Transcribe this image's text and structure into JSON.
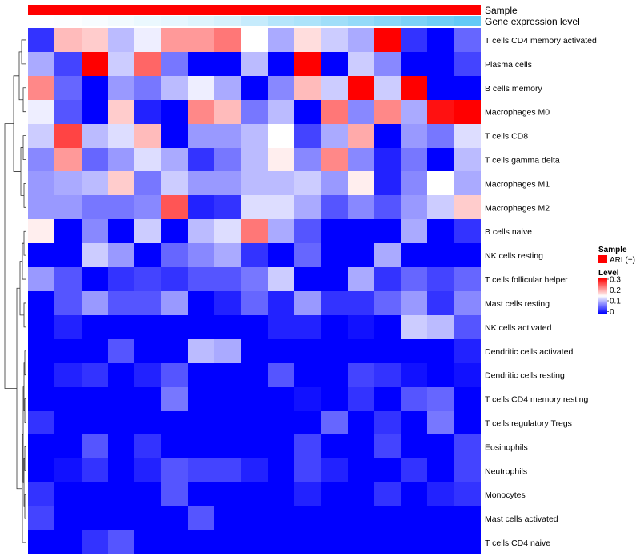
{
  "chart_data": {
    "type": "heatmap",
    "rows": [
      "T cells CD4 memory activated",
      "Plasma cells",
      "B cells memory",
      "Macrophages M0",
      "T cells CD8",
      "T cells gamma delta",
      "Macrophages M1",
      "Macrophages M2",
      "B cells naive",
      "NK cells resting",
      "T cells follicular helper",
      "Mast cells resting",
      "NK cells activated",
      "Dendritic cells activated",
      "Dendritic cells resting",
      "T cells CD4 memory resting",
      "T cells regulatory  Tregs",
      "Eosinophils",
      "Neutrophils",
      "Monocytes",
      "Mast cells activated",
      "T cells CD4 naive"
    ],
    "n_columns": 17,
    "values": [
      [
        0.03,
        0.19,
        0.18,
        0.11,
        0.14,
        0.21,
        0.21,
        0.23,
        0.15,
        0.1,
        0.17,
        0.12,
        0.1,
        0.3,
        0.03,
        0.0,
        0.06
      ],
      [
        0.1,
        0.04,
        0.3,
        0.12,
        0.24,
        0.07,
        0.0,
        0.0,
        0.11,
        0.0,
        0.3,
        0.0,
        0.12,
        0.08,
        0.0,
        0.0,
        0.04
      ],
      [
        0.22,
        0.06,
        0.0,
        0.09,
        0.07,
        0.11,
        0.14,
        0.1,
        0.0,
        0.08,
        0.19,
        0.12,
        0.3,
        0.12,
        0.3,
        0.0,
        0.0
      ],
      [
        0.14,
        0.05,
        0.0,
        0.18,
        0.02,
        0.0,
        0.22,
        0.19,
        0.07,
        0.11,
        0.0,
        0.23,
        0.08,
        0.22,
        0.1,
        0.29,
        0.3
      ],
      [
        0.12,
        0.26,
        0.11,
        0.13,
        0.19,
        0.0,
        0.09,
        0.09,
        0.11,
        0.15,
        0.04,
        0.1,
        0.2,
        0.0,
        0.09,
        0.07,
        0.13
      ],
      [
        0.08,
        0.21,
        0.06,
        0.09,
        0.13,
        0.1,
        0.03,
        0.07,
        0.11,
        0.16,
        0.08,
        0.22,
        0.08,
        0.02,
        0.07,
        0.0,
        0.11
      ],
      [
        0.09,
        0.1,
        0.11,
        0.18,
        0.07,
        0.12,
        0.09,
        0.09,
        0.11,
        0.11,
        0.12,
        0.09,
        0.16,
        0.02,
        0.08,
        0.15,
        0.1
      ],
      [
        0.09,
        0.09,
        0.07,
        0.07,
        0.08,
        0.25,
        0.02,
        0.03,
        0.13,
        0.13,
        0.1,
        0.05,
        0.08,
        0.05,
        0.09,
        0.12,
        0.18
      ],
      [
        0.16,
        0.0,
        0.08,
        0.0,
        0.12,
        0.0,
        0.11,
        0.13,
        0.23,
        0.1,
        0.05,
        0.0,
        0.0,
        0.0,
        0.1,
        0.0,
        0.03
      ],
      [
        0.0,
        0.0,
        0.12,
        0.09,
        0.0,
        0.06,
        0.08,
        0.1,
        0.03,
        0.0,
        0.06,
        0.0,
        0.0,
        0.1,
        0.0,
        0.0,
        0.0
      ],
      [
        0.09,
        0.05,
        0.0,
        0.03,
        0.04,
        0.03,
        0.05,
        0.05,
        0.07,
        0.12,
        0.0,
        0.0,
        0.1,
        0.03,
        0.06,
        0.04,
        0.06
      ],
      [
        0.0,
        0.05,
        0.09,
        0.05,
        0.05,
        0.09,
        0.0,
        0.02,
        0.06,
        0.02,
        0.09,
        0.03,
        0.03,
        0.06,
        0.09,
        0.03,
        0.08
      ],
      [
        0.0,
        0.02,
        0.0,
        0.0,
        0.0,
        0.0,
        0.0,
        0.0,
        0.0,
        0.02,
        0.02,
        0.0,
        0.01,
        0.0,
        0.12,
        0.11,
        0.05
      ],
      [
        0.0,
        0.0,
        0.0,
        0.05,
        0.0,
        0.0,
        0.11,
        0.1,
        0.0,
        0.0,
        0.0,
        0.0,
        0.0,
        0.0,
        0.0,
        0.0,
        0.02
      ],
      [
        0.0,
        0.02,
        0.03,
        0.0,
        0.02,
        0.05,
        0.0,
        0.0,
        0.0,
        0.05,
        0.0,
        0.0,
        0.04,
        0.03,
        0.01,
        0.0,
        0.01
      ],
      [
        0.0,
        0.0,
        0.0,
        0.0,
        0.0,
        0.07,
        0.0,
        0.0,
        0.0,
        0.0,
        0.01,
        0.0,
        0.03,
        0.0,
        0.05,
        0.06,
        0.0
      ],
      [
        0.03,
        0.0,
        0.0,
        0.0,
        0.0,
        0.0,
        0.0,
        0.0,
        0.0,
        0.0,
        0.0,
        0.06,
        0.0,
        0.03,
        0.0,
        0.07,
        0.0
      ],
      [
        0.0,
        0.0,
        0.05,
        0.0,
        0.03,
        0.0,
        0.0,
        0.0,
        0.0,
        0.0,
        0.04,
        0.0,
        0.0,
        0.04,
        0.0,
        0.0,
        0.04
      ],
      [
        0.0,
        0.01,
        0.03,
        0.0,
        0.02,
        0.05,
        0.04,
        0.04,
        0.02,
        0.0,
        0.04,
        0.02,
        0.0,
        0.0,
        0.03,
        0.0,
        0.04
      ],
      [
        0.03,
        0.0,
        0.0,
        0.0,
        0.0,
        0.05,
        0.0,
        0.0,
        0.0,
        0.0,
        0.02,
        0.0,
        0.0,
        0.03,
        0.0,
        0.02,
        0.03
      ],
      [
        0.04,
        0.0,
        0.0,
        0.0,
        0.0,
        0.0,
        0.05,
        0.0,
        0.0,
        0.0,
        0.0,
        0.0,
        0.0,
        0.0,
        0.0,
        0.0,
        0.0
      ],
      [
        0.0,
        0.0,
        0.03,
        0.05,
        0.0,
        0.0,
        0.0,
        0.0,
        0.0,
        0.0,
        0.0,
        0.0,
        0.0,
        0.0,
        0.0,
        0.0,
        0.0
      ]
    ],
    "annotations": [
      {
        "name": "Sample",
        "values": [
          "ARL(+)",
          "ARL(+)",
          "ARL(+)",
          "ARL(+)",
          "ARL(+)",
          "ARL(+)",
          "ARL(+)",
          "ARL(+)",
          "ARL(+)",
          "ARL(+)",
          "ARL(+)",
          "ARL(+)",
          "ARL(+)",
          "ARL(+)",
          "ARL(+)",
          "ARL(+)",
          "ARL(+)"
        ]
      },
      {
        "name": "Gene expression level",
        "values": [
          0.0,
          0.02,
          0.05,
          0.08,
          0.12,
          0.15,
          0.2,
          0.25,
          0.35,
          0.45,
          0.5,
          0.58,
          0.65,
          0.72,
          0.8,
          0.88,
          0.95
        ]
      }
    ],
    "legend": {
      "sample_title": "Sample",
      "sample_entry": "ARL(+)",
      "level_title": "Level",
      "level_ticks": [
        "0.3",
        "0.2",
        "0.1",
        "0"
      ],
      "range": [
        0,
        0.3
      ]
    },
    "colors": {
      "low": "#0000ff",
      "mid": "#ffffff",
      "high": "#ff0000",
      "sample": "#ff0000",
      "gene_low": "#ffffff",
      "gene_high": "#5bc6f5"
    }
  }
}
